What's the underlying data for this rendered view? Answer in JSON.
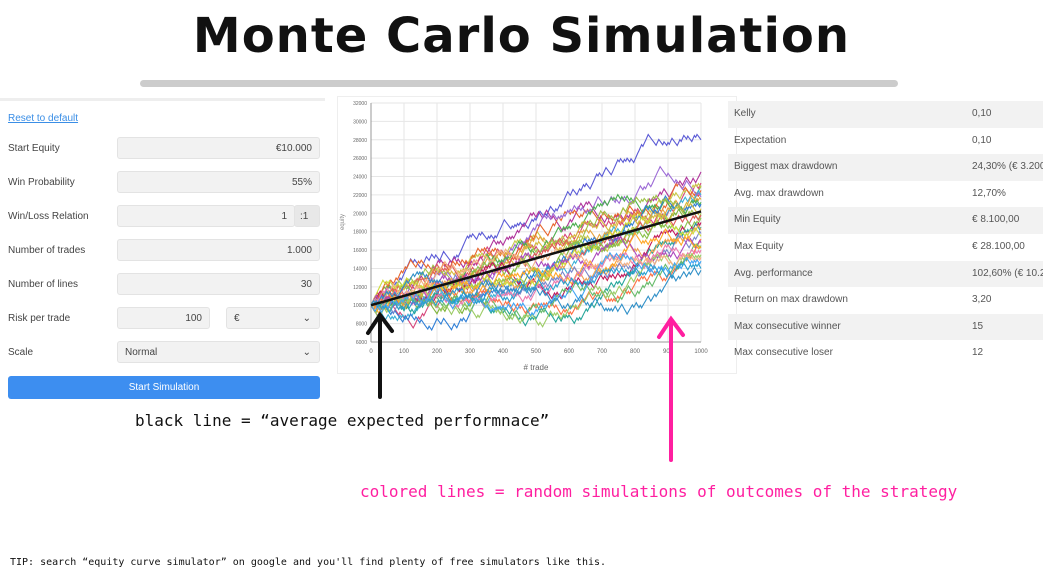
{
  "title": "Monte Carlo Simulation",
  "form": {
    "reset": "Reset to default",
    "fields": [
      {
        "label": "Start Equity",
        "value": "€10.000"
      },
      {
        "label": "Win Probability",
        "value": "55%"
      },
      {
        "label": "Win/Loss Relation",
        "value": "1",
        "suffix": ":1"
      },
      {
        "label": "Number of trades",
        "value": "1.000"
      },
      {
        "label": "Number of lines",
        "value": "30"
      },
      {
        "label": "Risk per trade",
        "value": "100",
        "unit": "€"
      },
      {
        "label": "Scale",
        "value": "Normal"
      }
    ],
    "start_button": "Start Simulation"
  },
  "stats": [
    {
      "k": "Kelly",
      "v": "0,10"
    },
    {
      "k": "Expectation",
      "v": "0,10"
    },
    {
      "k": "Biggest max drawdown",
      "v": "24,30% (€ 3.200"
    },
    {
      "k": "Avg. max drawdown",
      "v": "12,70%"
    },
    {
      "k": "Min Equity",
      "v": "€ 8.100,00"
    },
    {
      "k": "Max Equity",
      "v": "€ 28.100,00"
    },
    {
      "k": "Avg. performance",
      "v": "102,60% (€ 10.2"
    },
    {
      "k": "Return on max drawdown",
      "v": "3,20"
    },
    {
      "k": "Max consecutive winner",
      "v": "15"
    },
    {
      "k": "Max consecutive loser",
      "v": "12"
    }
  ],
  "annotations": {
    "black": "black line = “average expected performnace”",
    "pink": "colored lines = random simulations of outcomes of the strategy",
    "tip": "TIP: search “equity curve simulator” on google and you'll find plenty of free simulators like this.",
    "black_color": "#111111",
    "pink_color": "#ff1fa0"
  },
  "chart_data": {
    "type": "line",
    "xlabel": "# trade",
    "ylabel": "equity",
    "xlim": [
      0,
      1000
    ],
    "ylim": [
      6000,
      32000
    ],
    "xticks": [
      0,
      100,
      200,
      300,
      400,
      500,
      600,
      700,
      800,
      900,
      1000
    ],
    "yticks": [
      6000,
      8000,
      10000,
      12000,
      14000,
      16000,
      18000,
      20000,
      22000,
      24000,
      26000,
      28000,
      30000,
      32000
    ],
    "grid": true,
    "average": {
      "x": [
        0,
        1000
      ],
      "y": [
        10000,
        20200
      ],
      "color": "#111111"
    },
    "simulations_start": 10000,
    "simulations_final_equity": [
      28000,
      24500,
      23300,
      23000,
      22800,
      22500,
      22000,
      21800,
      21500,
      21200,
      21000,
      20500,
      20000,
      19800,
      19500,
      19000,
      18500,
      18200,
      17800,
      17500,
      17200,
      16800,
      16500,
      16200,
      16000,
      15500,
      15200,
      14800,
      14000,
      13800
    ],
    "colors": [
      "#5b5bd6",
      "#b0359c",
      "#d6457a",
      "#7fb33a",
      "#c9c94a",
      "#e8642b",
      "#3bb0d6",
      "#9c6ad6",
      "#e6a23c",
      "#4caf50",
      "#2f7fd6",
      "#d6b93a",
      "#a0c24a",
      "#e05a5a",
      "#8bc34a",
      "#c2185b",
      "#26a69a",
      "#f0a050",
      "#7986cb",
      "#cddc39",
      "#ff7043",
      "#ab47bc",
      "#66bb6a",
      "#ffa726",
      "#ec7ab0",
      "#9ccc65",
      "#f4b183",
      "#42a5f5",
      "#29a0d0",
      "#3090c8"
    ]
  }
}
